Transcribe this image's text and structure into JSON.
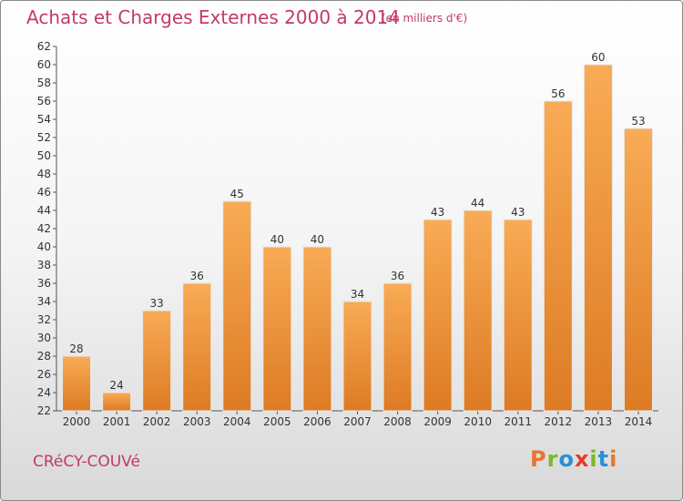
{
  "header": {
    "title": "Achats et Charges Externes 2000 à 2014",
    "subtitle": "(en milliers d'€)"
  },
  "footer": {
    "place": "CRéCY-COUVé",
    "logo": "Proxiti"
  },
  "colors": {
    "title": "#c23a6a",
    "bar_top": "#f9ab55",
    "bar_bottom": "#dd7b24",
    "logo_letters": [
      "#e8762a",
      "#7bb82b",
      "#2b8fd4",
      "#e83a2a",
      "#7bb82b",
      "#2b8fd4",
      "#e8762a"
    ]
  },
  "chart_data": {
    "type": "bar",
    "title": "Achats et Charges Externes 2000 à 2014",
    "categories": [
      "2000",
      "2001",
      "2002",
      "2003",
      "2004",
      "2005",
      "2006",
      "2007",
      "2008",
      "2009",
      "2010",
      "2011",
      "2012",
      "2013",
      "2014"
    ],
    "values": [
      28,
      24,
      33,
      36,
      45,
      40,
      40,
      34,
      36,
      43,
      44,
      43,
      56,
      60,
      53
    ],
    "ylim": [
      22,
      62
    ],
    "yticks": [
      22,
      24,
      26,
      28,
      30,
      32,
      34,
      36,
      38,
      40,
      42,
      44,
      46,
      48,
      50,
      52,
      54,
      56,
      58,
      60,
      62
    ],
    "grid": false,
    "data_labels": true
  }
}
